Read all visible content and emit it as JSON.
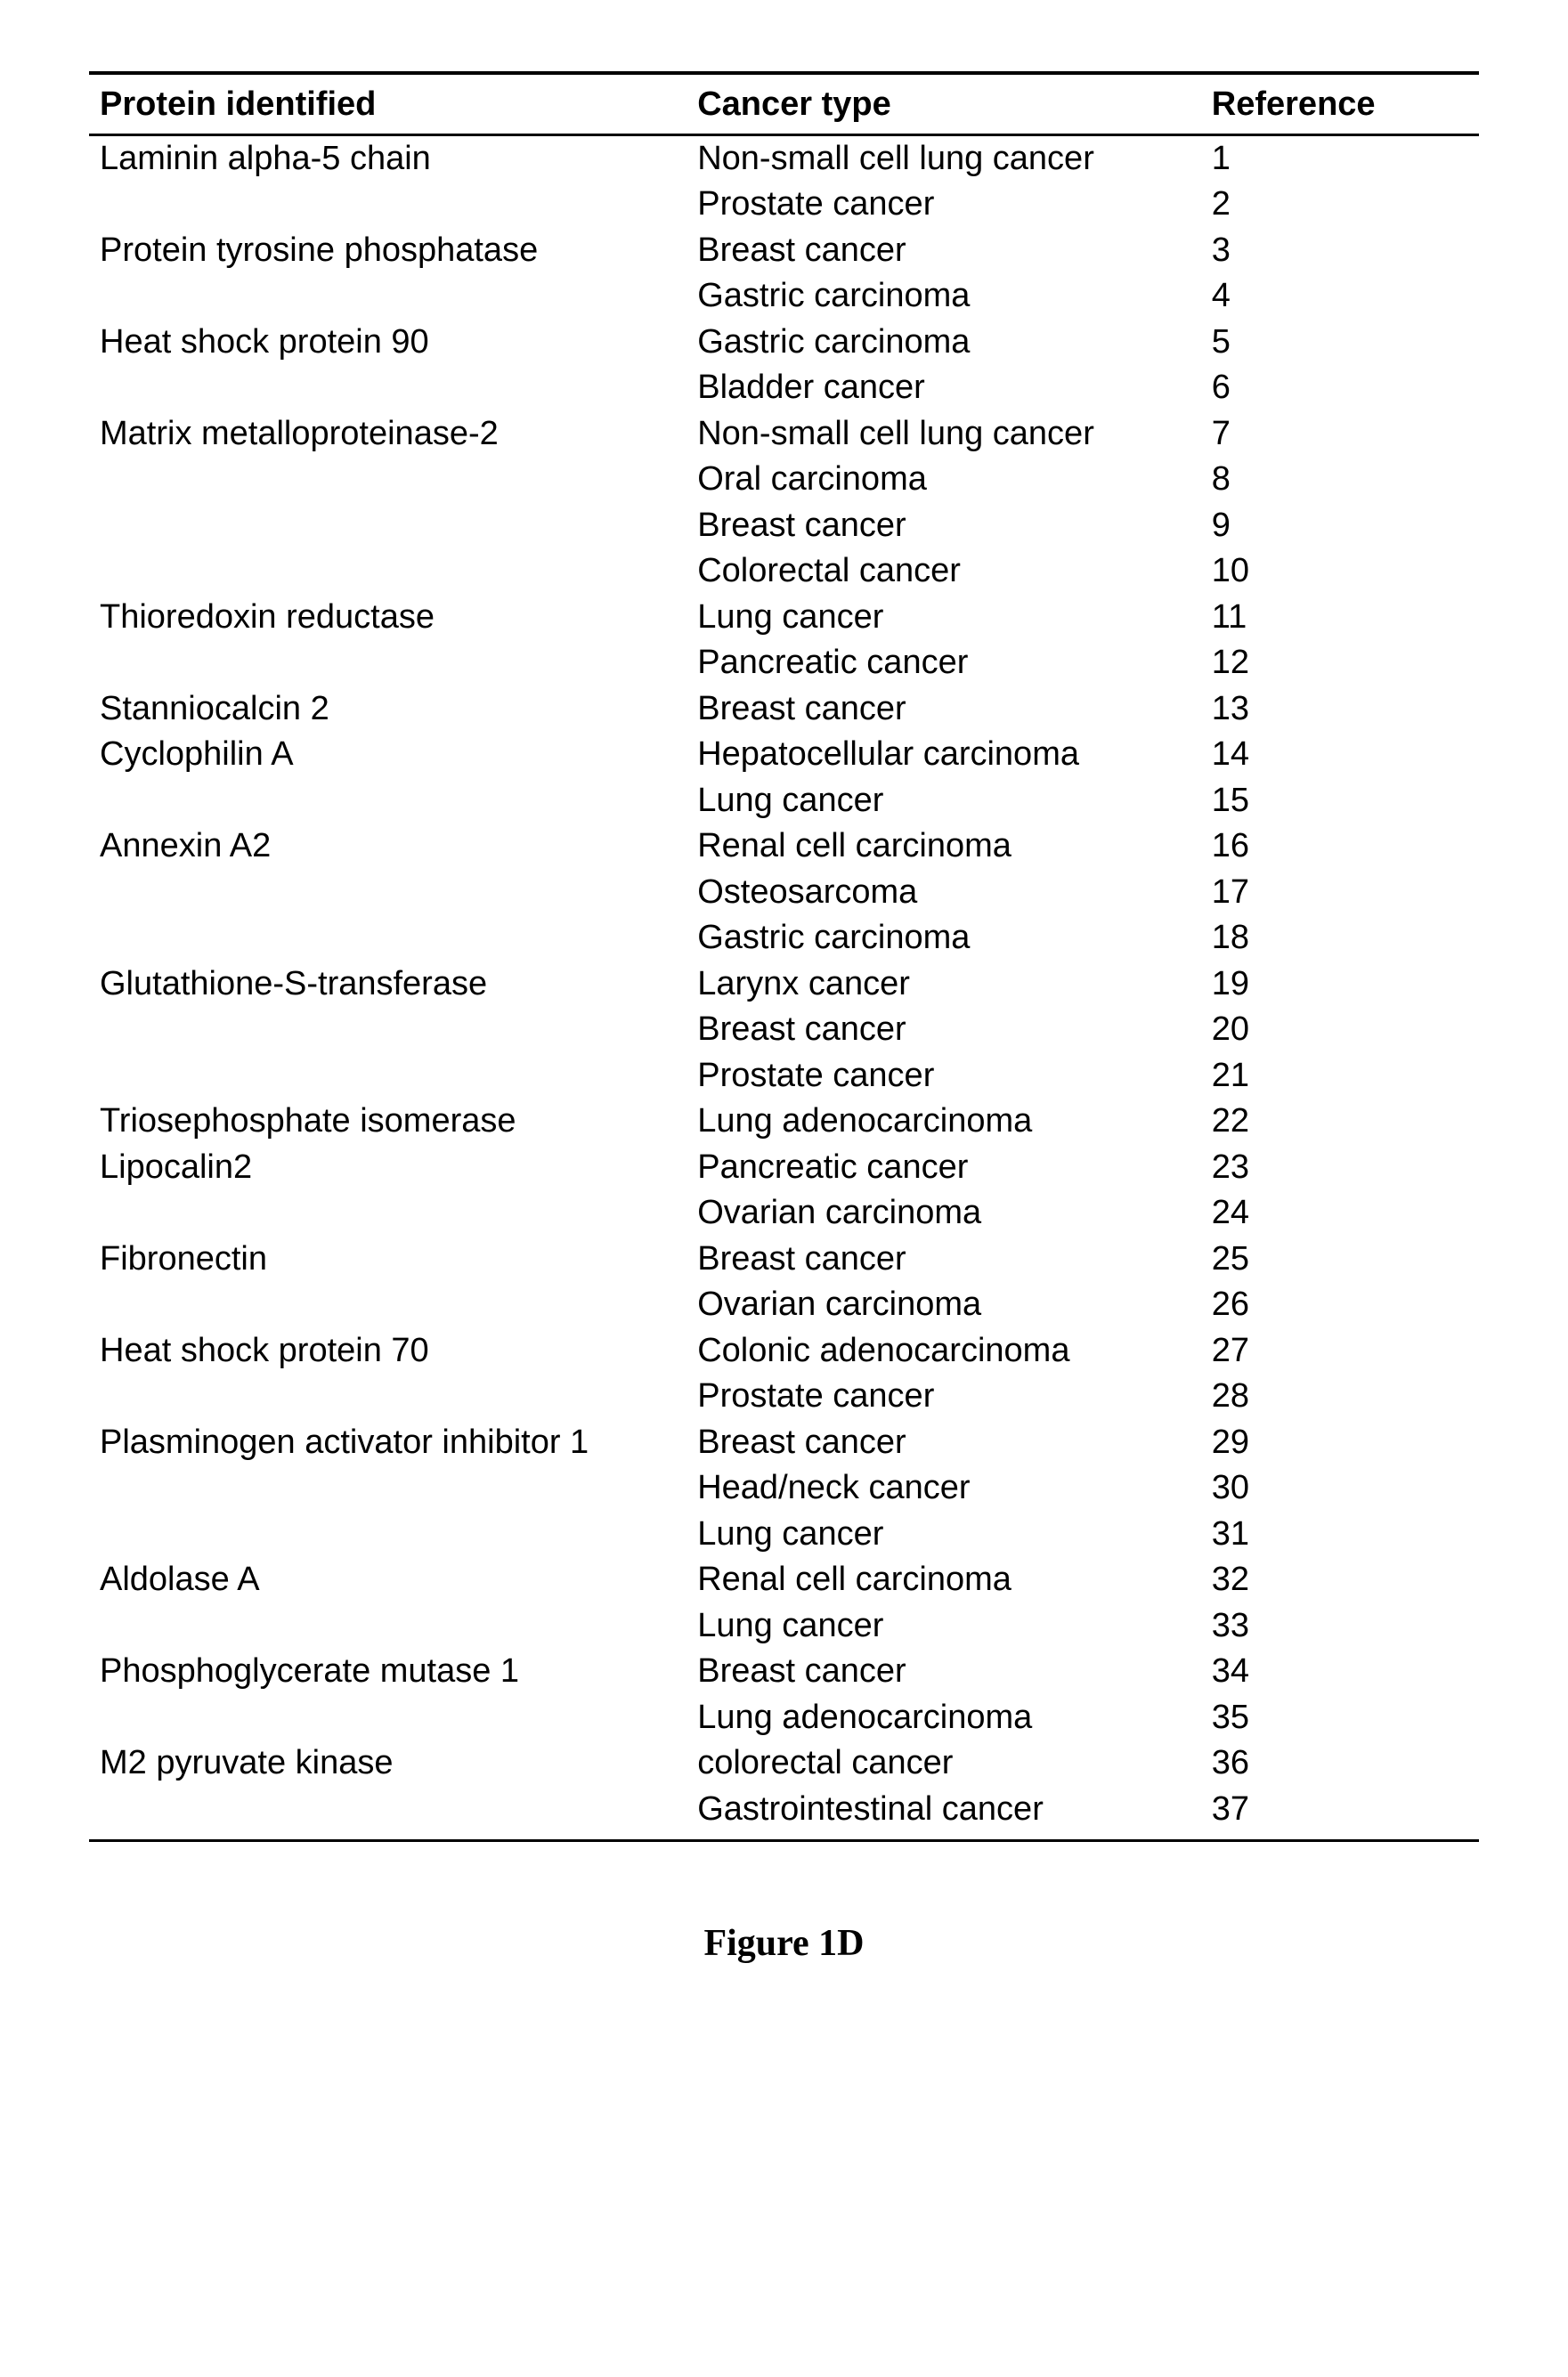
{
  "table": {
    "headers": {
      "protein": "Protein identified",
      "cancer": "Cancer type",
      "reference": "Reference"
    },
    "rows": [
      {
        "protein": "Laminin alpha-5 chain",
        "cancer": "Non-small cell lung cancer",
        "reference": "1"
      },
      {
        "protein": "",
        "cancer": "Prostate cancer",
        "reference": "2"
      },
      {
        "protein": "Protein tyrosine phosphatase",
        "cancer": "Breast cancer",
        "reference": "3"
      },
      {
        "protein": "",
        "cancer": "Gastric carcinoma",
        "reference": "4"
      },
      {
        "protein": "Heat shock protein 90",
        "cancer": "Gastric carcinoma",
        "reference": "5"
      },
      {
        "protein": "",
        "cancer": "Bladder cancer",
        "reference": "6"
      },
      {
        "protein": "Matrix metalloproteinase-2",
        "cancer": "Non-small cell lung cancer",
        "reference": "7"
      },
      {
        "protein": "",
        "cancer": "Oral carcinoma",
        "reference": "8"
      },
      {
        "protein": "",
        "cancer": "Breast cancer",
        "reference": "9"
      },
      {
        "protein": "",
        "cancer": "Colorectal cancer",
        "reference": "10"
      },
      {
        "protein": "Thioredoxin reductase",
        "cancer": "Lung cancer",
        "reference": "11"
      },
      {
        "protein": "",
        "cancer": "Pancreatic cancer",
        "reference": "12"
      },
      {
        "protein": "Stanniocalcin 2",
        "cancer": "Breast cancer",
        "reference": "13"
      },
      {
        "protein": "Cyclophilin A",
        "cancer": "Hepatocellular carcinoma",
        "reference": "14"
      },
      {
        "protein": "",
        "cancer": "Lung cancer",
        "reference": "15"
      },
      {
        "protein": "Annexin A2",
        "cancer": "Renal cell carcinoma",
        "reference": "16"
      },
      {
        "protein": "",
        "cancer": "Osteosarcoma",
        "reference": "17"
      },
      {
        "protein": "",
        "cancer": "Gastric carcinoma",
        "reference": "18"
      },
      {
        "protein": "Glutathione-S-transferase",
        "cancer": "Larynx cancer",
        "reference": "19"
      },
      {
        "protein": "",
        "cancer": "Breast cancer",
        "reference": "20"
      },
      {
        "protein": "",
        "cancer": "Prostate cancer",
        "reference": "21"
      },
      {
        "protein": "Triosephosphate isomerase",
        "cancer": "Lung adenocarcinoma",
        "reference": "22"
      },
      {
        "protein": "Lipocalin2",
        "cancer": "Pancreatic cancer",
        "reference": "23"
      },
      {
        "protein": "",
        "cancer": "Ovarian carcinoma",
        "reference": "24"
      },
      {
        "protein": "Fibronectin",
        "cancer": "Breast cancer",
        "reference": "25"
      },
      {
        "protein": "",
        "cancer": "Ovarian carcinoma",
        "reference": "26"
      },
      {
        "protein": "Heat shock protein 70",
        "cancer": "Colonic adenocarcinoma",
        "reference": "27"
      },
      {
        "protein": "",
        "cancer": "Prostate cancer",
        "reference": "28"
      },
      {
        "protein": "Plasminogen activator inhibitor 1",
        "cancer": "Breast cancer",
        "reference": "29"
      },
      {
        "protein": "",
        "cancer": "Head/neck cancer",
        "reference": "30"
      },
      {
        "protein": "",
        "cancer": "Lung cancer",
        "reference": "31"
      },
      {
        "protein": "Aldolase A",
        "cancer": "Renal cell carcinoma",
        "reference": "32"
      },
      {
        "protein": "",
        "cancer": "Lung cancer",
        "reference": "33"
      },
      {
        "protein": "Phosphoglycerate mutase 1",
        "cancer": "Breast cancer",
        "reference": "34"
      },
      {
        "protein": "",
        "cancer": "Lung adenocarcinoma",
        "reference": "35"
      },
      {
        "protein": "M2 pyruvate kinase",
        "cancer": "colorectal cancer",
        "reference": "36"
      },
      {
        "protein": "",
        "cancer": "Gastrointestinal cancer",
        "reference": "37"
      }
    ]
  },
  "caption": "Figure 1D"
}
